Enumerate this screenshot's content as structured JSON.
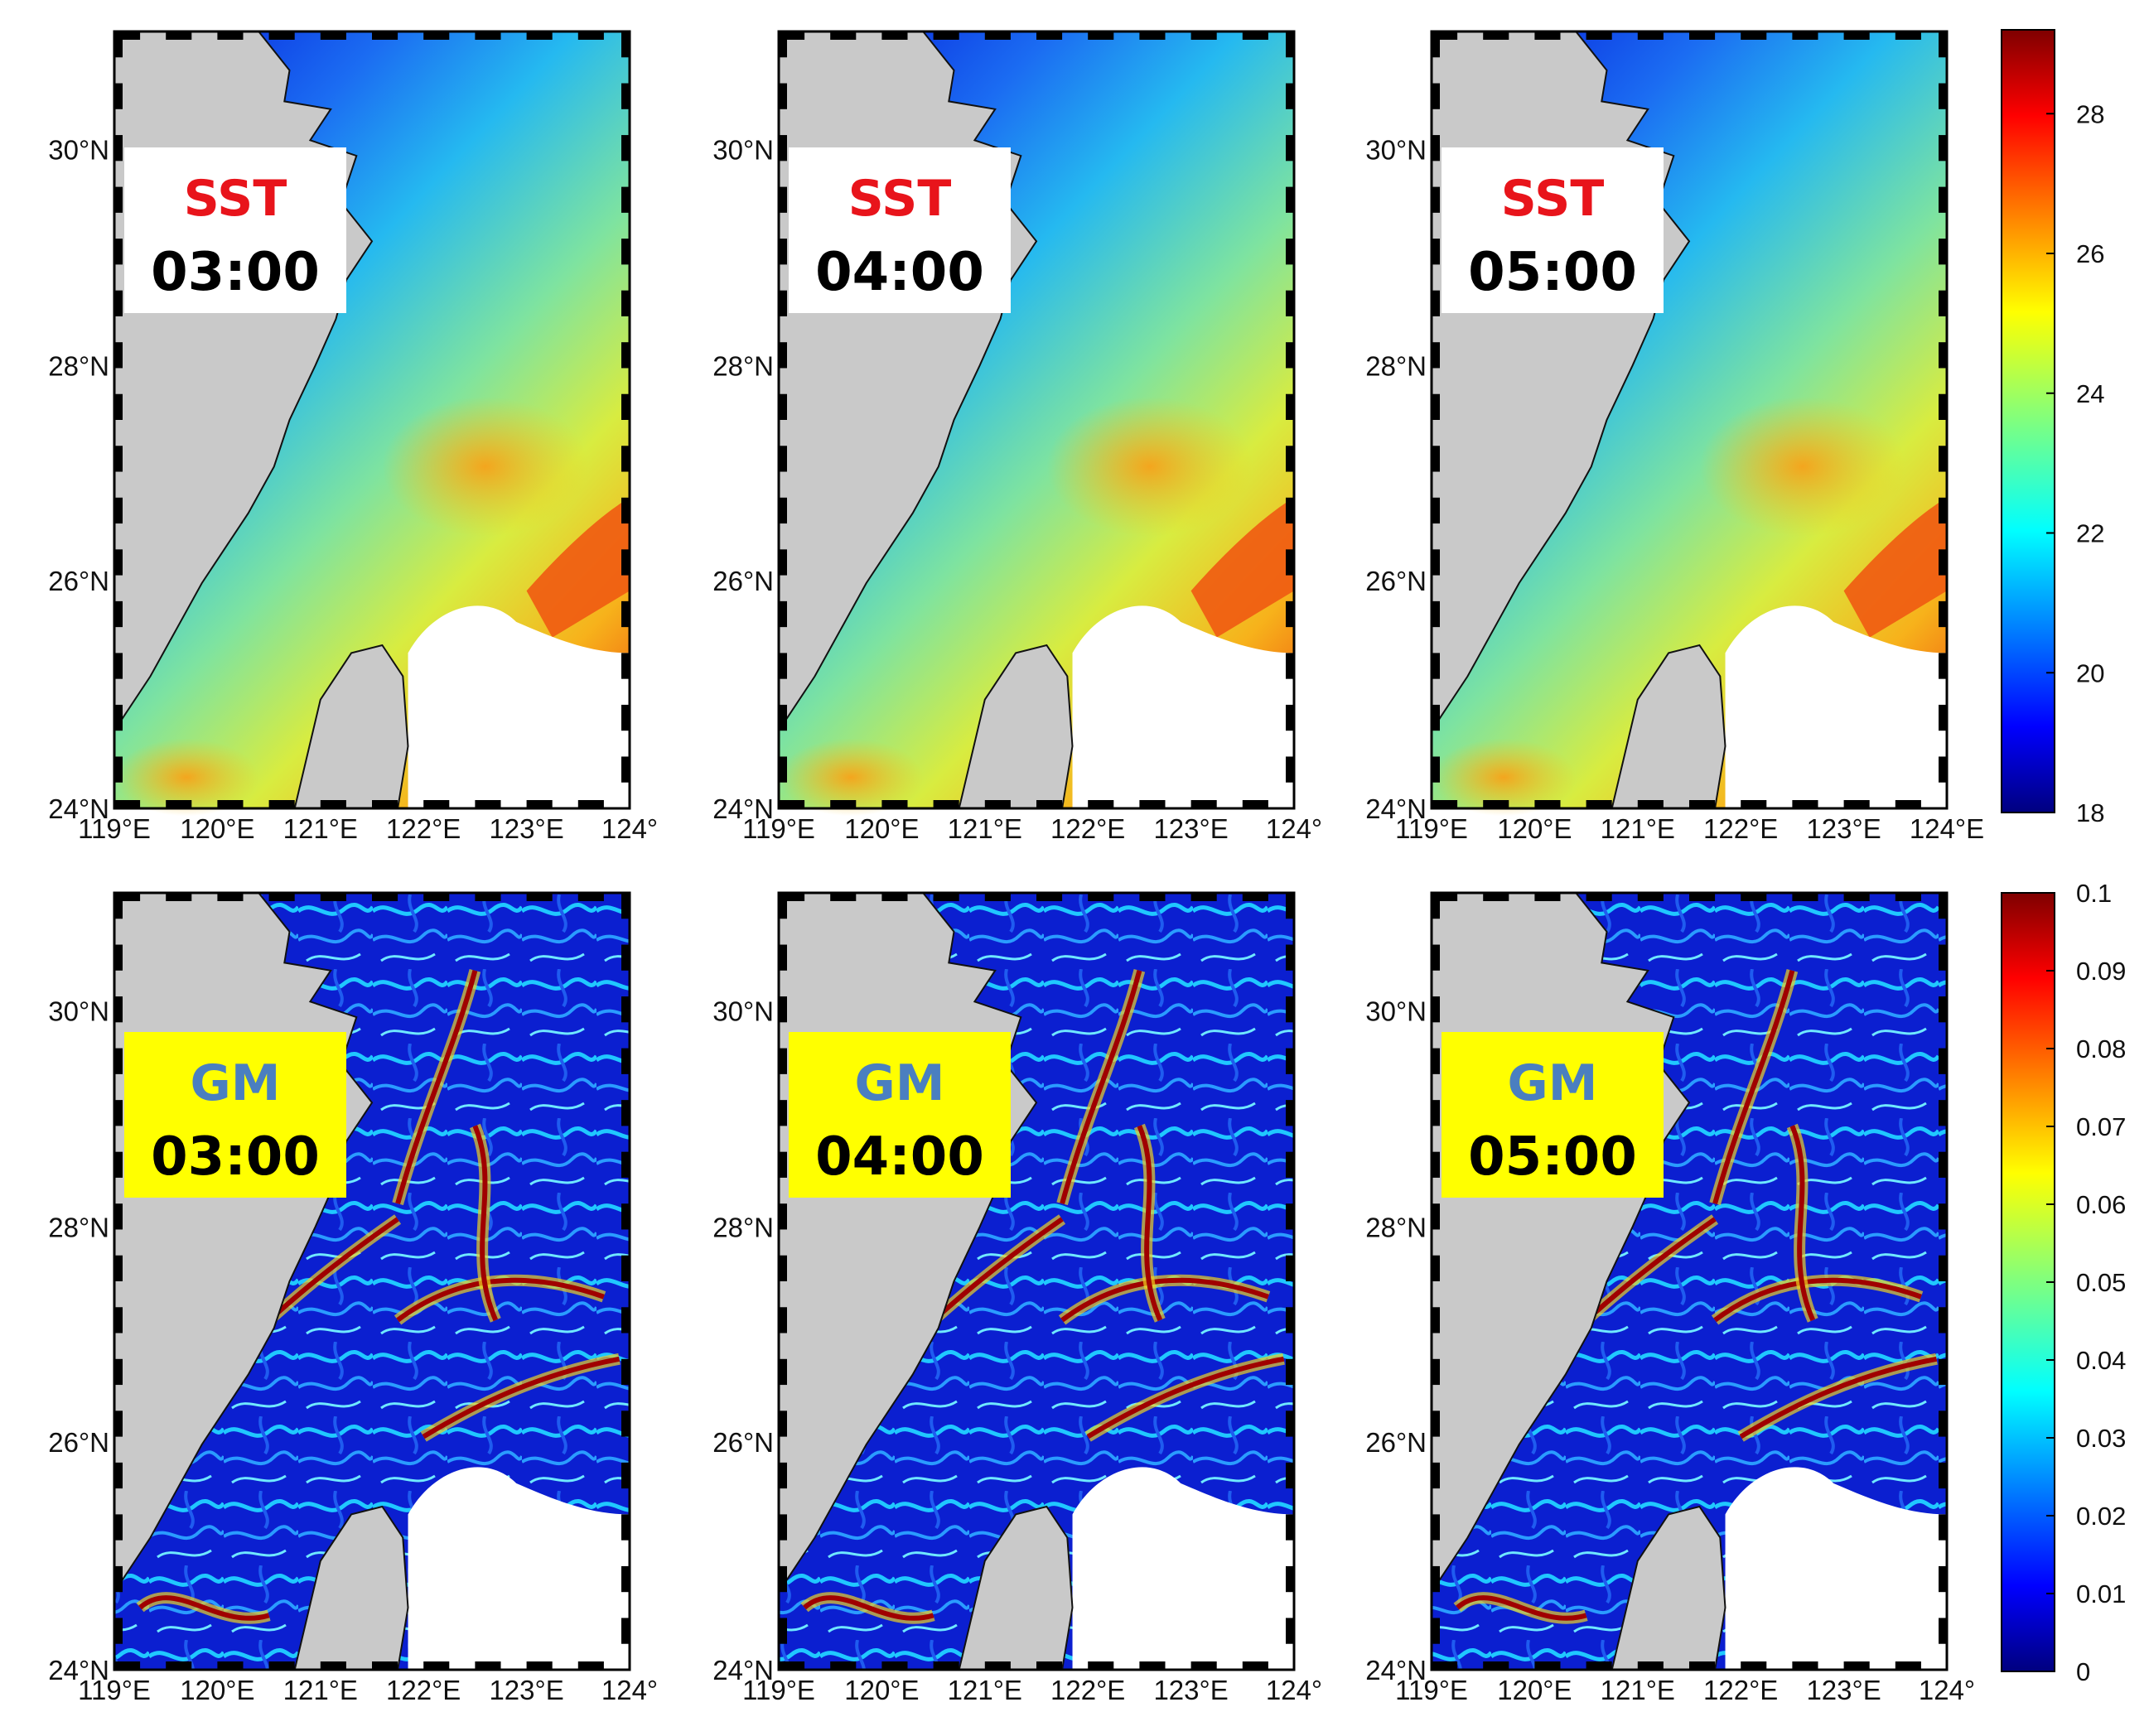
{
  "lat_labels": [
    "30°N",
    "28°N",
    "26°N",
    "24°N"
  ],
  "lon_labels": [
    "119°E",
    "120°E",
    "121°E",
    "122°E",
    "123°E",
    "124°"
  ],
  "lon_labels_last_col": [
    "119°E",
    "120°E",
    "121°E",
    "122°E",
    "123°E",
    "124°E"
  ],
  "rows": [
    {
      "variable": "SST",
      "title_color": "#e8141b",
      "box_color": "#ffffff",
      "panels": [
        {
          "title": "SST",
          "time": "03:00"
        },
        {
          "title": "SST",
          "time": "04:00"
        },
        {
          "title": "SST",
          "time": "05:00"
        }
      ],
      "colorbar": {
        "ticks": [
          "28",
          "26",
          "24",
          "22",
          "20",
          "18"
        ],
        "range": [
          18,
          29.2
        ]
      }
    },
    {
      "variable": "GM",
      "title_color": "#4a7fc0",
      "box_color": "#ffff00",
      "panels": [
        {
          "title": "GM",
          "time": "03:00"
        },
        {
          "title": "GM",
          "time": "04:00"
        },
        {
          "title": "GM",
          "time": "05:00"
        }
      ],
      "colorbar": {
        "ticks": [
          "0.1",
          "0.09",
          "0.08",
          "0.07",
          "0.06",
          "0.05",
          "0.04",
          "0.03",
          "0.02",
          "0.01",
          "0"
        ],
        "range": [
          0,
          0.1
        ]
      }
    }
  ],
  "colors": {
    "land": "#c9c9c9",
    "jet": [
      "#00007f",
      "#0000ff",
      "#007fff",
      "#00ffff",
      "#7fff7f",
      "#ffff00",
      "#ff7f00",
      "#ff0000",
      "#7f0000"
    ]
  }
}
